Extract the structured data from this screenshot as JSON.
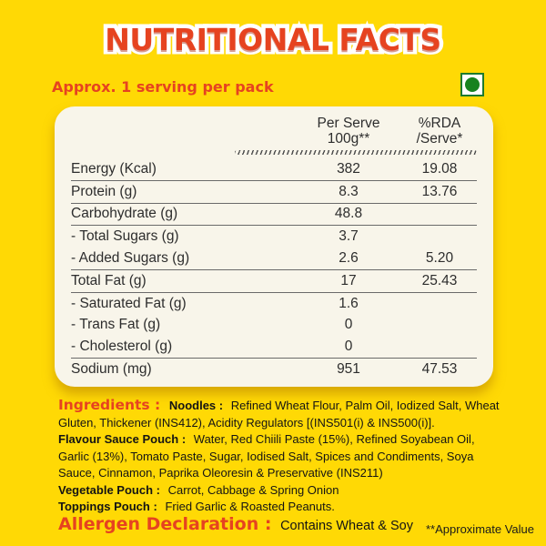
{
  "page": {
    "title": "NUTRITIONAL FACTS",
    "serving_note": "Approx. 1 serving per pack",
    "footnote": "**Approximate Value"
  },
  "veg_mark": {
    "meaning": "vegetarian-green-dot"
  },
  "colors": {
    "background": "#FFD905",
    "accent_red": "#E64320",
    "card_background": "#F8F5EA",
    "table_text": "#2D2D2D",
    "veg_green": "#17821F"
  },
  "table": {
    "columns": [
      {
        "line1": "Per Serve",
        "line2": "100g**"
      },
      {
        "line1": "%RDA",
        "line2": "/Serve*"
      }
    ],
    "rows": [
      {
        "label": "Energy (Kcal)",
        "per_serve": "382",
        "rda": "19.08"
      },
      {
        "label": "Protein (g)",
        "per_serve": "8.3",
        "rda": "13.76"
      },
      {
        "label": "Carbohydrate (g)",
        "per_serve": "48.8",
        "rda": ""
      },
      {
        "label": "- Total Sugars (g)",
        "per_serve": "3.7",
        "rda": ""
      },
      {
        "label": "- Added Sugars (g)",
        "per_serve": "2.6",
        "rda": "5.20"
      },
      {
        "label": "Total Fat (g)",
        "per_serve": "17",
        "rda": "25.43"
      },
      {
        "label": "- Saturated Fat (g)",
        "per_serve": "1.6",
        "rda": ""
      },
      {
        "label": "- Trans Fat (g)",
        "per_serve": "0",
        "rda": ""
      },
      {
        "label": "- Cholesterol (g)",
        "per_serve": "0",
        "rda": ""
      },
      {
        "label": "Sodium (mg)",
        "per_serve": "951",
        "rda": "47.53"
      }
    ]
  },
  "ingredients": {
    "heading": "Ingredients :",
    "sections": [
      {
        "label": "Noodles :",
        "text": "Refined Wheat Flour, Palm Oil, Iodized Salt, Wheat Gluten, Thickener (INS412), Acidity Regulators [(INS501(i) & INS500(i)]."
      },
      {
        "label": "Flavour Sauce Pouch :",
        "text": "Water, Red Chiili Paste (15%), Refined Soyabean Oil, Garlic (13%), Tomato Paste, Sugar, Iodised Salt, Spices and Condiments, Soya Sauce, Cinnamon, Paprika Oleoresin & Preservative (INS211)"
      },
      {
        "label": "Vegetable Pouch :",
        "text": "Carrot, Cabbage & Spring Onion"
      },
      {
        "label": "Toppings Pouch :",
        "text": "Fried Garlic & Roasted Peanuts."
      }
    ]
  },
  "allergen": {
    "label": "Allergen Declaration :",
    "text": "Contains Wheat & Soy"
  }
}
